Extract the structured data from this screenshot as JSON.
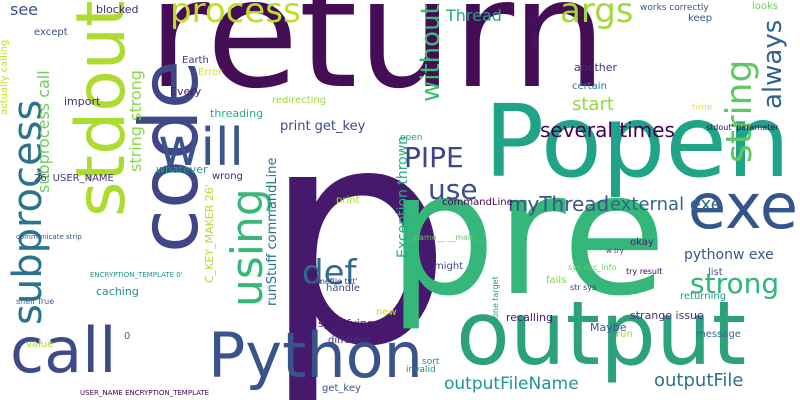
{
  "words": [
    {
      "text": "p",
      "color": "#46196c"
    },
    {
      "text": "return",
      "color": "#440d56"
    },
    {
      "text": "pre",
      "color": "#35b779"
    },
    {
      "text": "Popen",
      "color": "#20a488"
    },
    {
      "text": "output",
      "color": "#2ba17e"
    },
    {
      "text": "code",
      "color": "#3f4788"
    },
    {
      "text": "stdout",
      "color": "#addc30"
    },
    {
      "text": "Python",
      "color": "#3a538b"
    },
    {
      "text": "call",
      "color": "#3d4c89"
    },
    {
      "text": "subprocess",
      "color": "#2b728e"
    },
    {
      "text": "exe",
      "color": "#34558c"
    },
    {
      "text": "will",
      "color": "#3a548c"
    },
    {
      "text": "using",
      "color": "#37b878"
    },
    {
      "text": "string",
      "color": "#5ec962"
    },
    {
      "text": "always",
      "color": "#33628d"
    },
    {
      "text": "def",
      "color": "#2f6b8e"
    },
    {
      "text": "strong",
      "color": "#31b57b"
    },
    {
      "text": "process",
      "color": "#bddf26"
    },
    {
      "text": "args",
      "color": "#a2da37"
    },
    {
      "text": "without",
      "color": "#3fbc73"
    },
    {
      "text": "PIPE",
      "color": "#3f4788"
    },
    {
      "text": "use",
      "color": "#3e4c8a"
    },
    {
      "text": "Thread",
      "color": "#22a785"
    },
    {
      "text": "several times",
      "color": "#440154"
    },
    {
      "text": "external exe",
      "color": "#31678e"
    },
    {
      "text": "myThread",
      "color": "#3b528b"
    },
    {
      "text": "outputFileName",
      "color": "#1f988b"
    },
    {
      "text": "outputFile",
      "color": "#2c728e"
    },
    {
      "text": "pythonw exe",
      "color": "#3a548c"
    },
    {
      "text": "start",
      "color": "#93d741"
    },
    {
      "text": "string strong",
      "color": "#8bd646"
    },
    {
      "text": "subprocess call",
      "color": "#6ece58"
    },
    {
      "text": "print get_key",
      "color": "#3e4989"
    },
    {
      "text": "see",
      "color": "#3b518b"
    },
    {
      "text": "Exception thrown",
      "color": "#25ac82"
    },
    {
      "text": "runStuff commandLine",
      "color": "#2c718e"
    },
    {
      "text": "C_KEY_MAKER 26'",
      "color": "#b2dd2d"
    },
    {
      "text": "actually calling",
      "color": "#c8e020"
    },
    {
      "text": "blocked",
      "color": "#472a7a"
    },
    {
      "text": "except",
      "color": "#3b528b"
    },
    {
      "text": "Earth",
      "color": "#443a83"
    },
    {
      "text": "Error",
      "color": "#d2e21b"
    },
    {
      "text": "Every",
      "color": "#481a6c"
    },
    {
      "text": "import",
      "color": "#472d7b"
    },
    {
      "text": "threading",
      "color": "#27ad81"
    },
    {
      "text": "redirecting",
      "color": "#a0da39"
    },
    {
      "text": "26' USER_NAME",
      "color": "#46327e"
    },
    {
      "text": "whatever",
      "color": "#1f9a8a"
    },
    {
      "text": "wrong",
      "color": "#482374"
    },
    {
      "text": "caching",
      "color": "#21918c"
    },
    {
      "text": "commandLine",
      "color": "#450559"
    },
    {
      "text": "another",
      "color": "#472c7a"
    },
    {
      "text": "certain",
      "color": "#2a788e"
    },
    {
      "text": "specify",
      "color": "#48186a"
    },
    {
      "text": "looks",
      "color": "#6ece58"
    },
    {
      "text": "keep",
      "color": "#365c8d"
    },
    {
      "text": "works correctly",
      "color": "#3b528b"
    },
    {
      "text": "time",
      "color": "#f1e51d"
    },
    {
      "text": "stdout' parameter",
      "color": "#440154"
    },
    {
      "text": "open",
      "color": "#1fa187"
    },
    {
      "text": "__name__ __main__'",
      "color": "#63cb5f"
    },
    {
      "text": "print",
      "color": "#a8db34"
    },
    {
      "text": "handle",
      "color": "#3e4a89"
    },
    {
      "text": "Maybe",
      "color": "#3b528b"
    },
    {
      "text": "fails",
      "color": "#86d549"
    },
    {
      "text": "might",
      "color": "#3e4989"
    },
    {
      "text": "recalling",
      "color": "#48186a"
    },
    {
      "text": "strange issue",
      "color": "#46317e"
    },
    {
      "text": "specifying",
      "color": "#481467"
    },
    {
      "text": "different",
      "color": "#46307e"
    },
    {
      "text": "sort",
      "color": "#287d8e"
    },
    {
      "text": "invalid",
      "color": "#238a8d"
    },
    {
      "text": "get_key",
      "color": "#3b518b"
    },
    {
      "text": "value",
      "color": "#addc30"
    },
    {
      "text": "new",
      "color": "#c5e021"
    },
    {
      "text": "okay",
      "color": "#482173"
    },
    {
      "text": "list",
      "color": "#3c4f8a"
    },
    {
      "text": "returning",
      "color": "#1e9b8a"
    },
    {
      "text": "message",
      "color": "#2d718e"
    },
    {
      "text": "run",
      "color": "#b5de2b"
    },
    {
      "text": "try result",
      "color": "#440154"
    },
    {
      "text": "sys exc_info",
      "color": "#6ece58"
    },
    {
      "text": "str sys",
      "color": "#46327e"
    },
    {
      "text": "None target",
      "color": "#1fa088"
    },
    {
      "text": "w try",
      "color": "#453781"
    },
    {
      "text": "somefile txt'",
      "color": "#453882"
    },
    {
      "text": "communicate strip",
      "color": "#3b528b"
    },
    {
      "text": "ENCRYPTION_TEMPLATE 0'",
      "color": "#1f968b"
    },
    {
      "text": "shell True",
      "color": "#355f8d"
    },
    {
      "text": "USER_NAME ENCRYPTION_TEMPLATE",
      "color": "#440154"
    },
    {
      "text": "0",
      "color": "#2d708e"
    }
  ]
}
